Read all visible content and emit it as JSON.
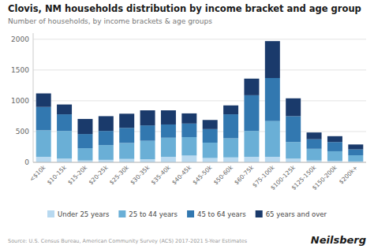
{
  "chart_data": {
    "type": "bar",
    "stacked": true,
    "title": "Clovis, NM households distribution by income bracket and age group",
    "subtitle": "Number of households, by income brackets & age groups",
    "source": "Source: U.S. Census Bureau, American Community Survey (ACS) 2017-2021 5-Year Estimates",
    "annotations": [
      "Neilsberg"
    ],
    "categories": [
      "<$10k",
      "$10-15k",
      "$15-20k",
      "$20-25k",
      "$25-30k",
      "$30-35k",
      "$35-40k",
      "$40-45k",
      "$45-50k",
      "$50-60k",
      "$60-75k",
      "$75-100k",
      "$100-125k",
      "$125-150k",
      "$150-200k",
      "$200k+"
    ],
    "series": [
      {
        "name": "Under 25 years",
        "color": "#b8d9f0",
        "values": [
          90,
          60,
          30,
          40,
          55,
          50,
          90,
          110,
          70,
          80,
          90,
          90,
          60,
          30,
          25,
          15
        ]
      },
      {
        "name": "25 to 44 years",
        "color": "#6aafd6",
        "values": [
          430,
          450,
          200,
          240,
          260,
          300,
          310,
          300,
          250,
          310,
          420,
          580,
          270,
          190,
          155,
          100
        ]
      },
      {
        "name": "45 to 64 years",
        "color": "#3278b0",
        "values": [
          380,
          270,
          230,
          230,
          245,
          250,
          215,
          220,
          220,
          390,
          580,
          700,
          420,
          155,
          150,
          95
        ]
      },
      {
        "name": "65 years and over",
        "color": "#1a3a6b",
        "values": [
          220,
          160,
          245,
          240,
          230,
          245,
          230,
          165,
          148,
          145,
          270,
          600,
          290,
          110,
          95,
          80
        ]
      }
    ],
    "ylim": [
      0,
      2100
    ],
    "yticks": [
      0,
      500,
      1000,
      1500,
      2000
    ],
    "grid": true,
    "legend": "bottom"
  }
}
